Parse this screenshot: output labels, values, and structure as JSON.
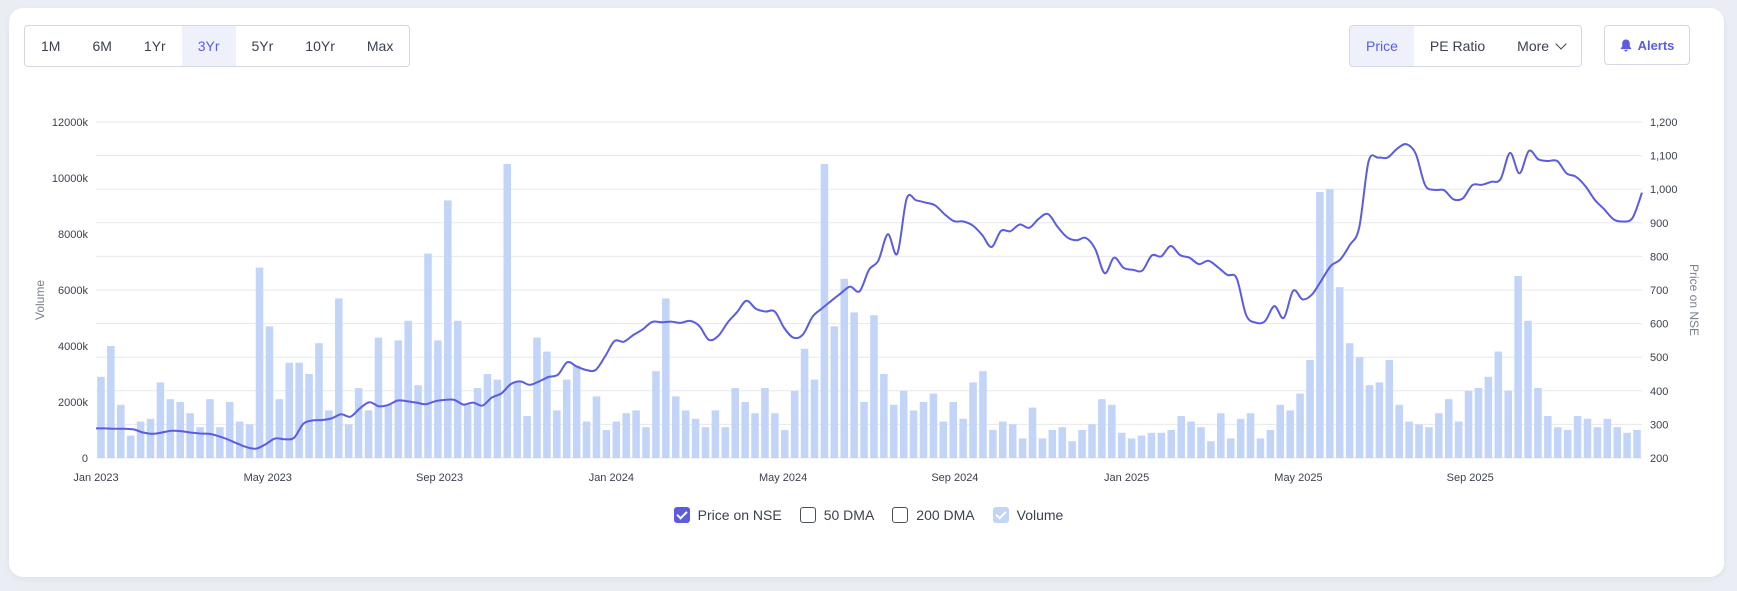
{
  "ranges": [
    "1M",
    "6M",
    "1Yr",
    "3Yr",
    "5Yr",
    "10Yr",
    "Max"
  ],
  "active_range": "3Yr",
  "metrics": {
    "price": "Price",
    "pe": "PE Ratio",
    "more": "More"
  },
  "alerts_label": "Alerts",
  "colors": {
    "accent": "#5b5ce0",
    "volume": "#c2d4f7",
    "grid": "#e6e8ee"
  },
  "legend": {
    "price": "Price on NSE",
    "dma50": "50 DMA",
    "dma200": "200 DMA",
    "volume": "Volume"
  },
  "chart_data": {
    "type": "bar+line",
    "xlabels": [
      "Jan 2023",
      "May 2023",
      "Sep 2023",
      "Jan 2024",
      "May 2024",
      "Sep 2024",
      "Jan 2025",
      "May 2025",
      "Sep 2025"
    ],
    "y_left": {
      "label": "Volume",
      "ticks": [
        "0",
        "2000k",
        "4000k",
        "6000k",
        "8000k",
        "10000k",
        "12000k"
      ],
      "range": [
        0,
        12000
      ]
    },
    "y_right": {
      "label": "Price on NSE",
      "ticks": [
        "200",
        "300",
        "400",
        "500",
        "600",
        "700",
        "800",
        "900",
        "1,000",
        "1,100",
        "1,200"
      ],
      "range": [
        200,
        1200
      ]
    },
    "grid": true,
    "legend_position": "bottom",
    "series": [
      {
        "name": "Volume",
        "kind": "bar",
        "unit": "k",
        "values": [
          2900,
          4000,
          1900,
          800,
          1300,
          1400,
          2700,
          2100,
          2000,
          1600,
          1100,
          2100,
          1100,
          2000,
          1300,
          1200,
          6800,
          4700,
          2100,
          3400,
          3400,
          3000,
          4100,
          1700,
          5700,
          1200,
          2500,
          1700,
          4300,
          1900,
          4200,
          4900,
          2600,
          7300,
          4200,
          9200,
          4900,
          1900,
          2500,
          3000,
          2800,
          10500,
          2700,
          1500,
          4300,
          3800,
          1700,
          2800,
          3300,
          1300,
          2200,
          1000,
          1300,
          1600,
          1700,
          1100,
          3100,
          5700,
          2200,
          1700,
          1400,
          1100,
          1700,
          1100,
          2500,
          2000,
          1600,
          2500,
          1600,
          1000,
          2400,
          3900,
          2800,
          10500,
          4700,
          6400,
          5200,
          2000,
          5100,
          3000,
          1900,
          2400,
          1700,
          2000,
          2300,
          1300,
          2000,
          1400,
          2700,
          3100,
          1000,
          1300,
          1200,
          700,
          1800,
          700,
          1000,
          1100,
          600,
          1000,
          1200,
          2100,
          1900,
          900,
          700,
          800,
          900,
          900,
          1000,
          1500,
          1300,
          1100,
          600,
          1600,
          700,
          1400,
          1600,
          700,
          1000,
          1900,
          1700,
          2300,
          3500,
          9500,
          9600,
          6100,
          4100,
          3600,
          2600,
          2700,
          3500,
          1900,
          1300,
          1200,
          1100,
          1600,
          2100,
          1300,
          2400,
          2500,
          2900,
          3800,
          2400,
          6500,
          4900,
          2500,
          1500,
          1100,
          1000,
          1500,
          1400,
          1100,
          1400,
          1100,
          900,
          1000
        ]
      },
      {
        "name": "Price on NSE",
        "kind": "line",
        "values": [
          288,
          288,
          287,
          287,
          285,
          276,
          272,
          276,
          281,
          280,
          276,
          273,
          272,
          265,
          255,
          243,
          232,
          228,
          241,
          258,
          256,
          260,
          302,
          312,
          313,
          318,
          330,
          323,
          348,
          366,
          354,
          358,
          371,
          369,
          365,
          360,
          369,
          373,
          373,
          359,
          365,
          356,
          380,
          392,
          420,
          428,
          418,
          428,
          441,
          448,
          485,
          472,
          462,
          462,
          502,
          548,
          546,
          566,
          583,
          605,
          604,
          606,
          602,
          608,
          593,
          552,
          563,
          603,
          634,
          668,
          644,
          636,
          636,
          587,
          558,
          568,
          620,
          645,
          668,
          690,
          710,
          696,
          760,
          788,
          866,
          808,
          972,
          967,
          960,
          952,
          926,
          905,
          904,
          892,
          864,
          828,
          876,
          875,
          895,
          885,
          912,
          926,
          888,
          857,
          848,
          855,
          822,
          750,
          796,
          766,
          760,
          758,
          803,
          800,
          831,
          804,
          796,
          777,
          787,
          768,
          745,
          735,
          626,
          603,
          607,
          652,
          617,
          698,
          672,
          687,
          729,
          772,
          791,
          834,
          886,
          1083,
          1094,
          1094,
          1120,
          1134,
          1105,
          1012,
          998,
          997,
          970,
          973,
          1012,
          1013,
          1022,
          1030,
          1108,
          1047,
          1114,
          1089,
          1084,
          1084,
          1047,
          1037,
          1009,
          968,
          940,
          910,
          904,
          915,
          990
        ]
      }
    ]
  }
}
